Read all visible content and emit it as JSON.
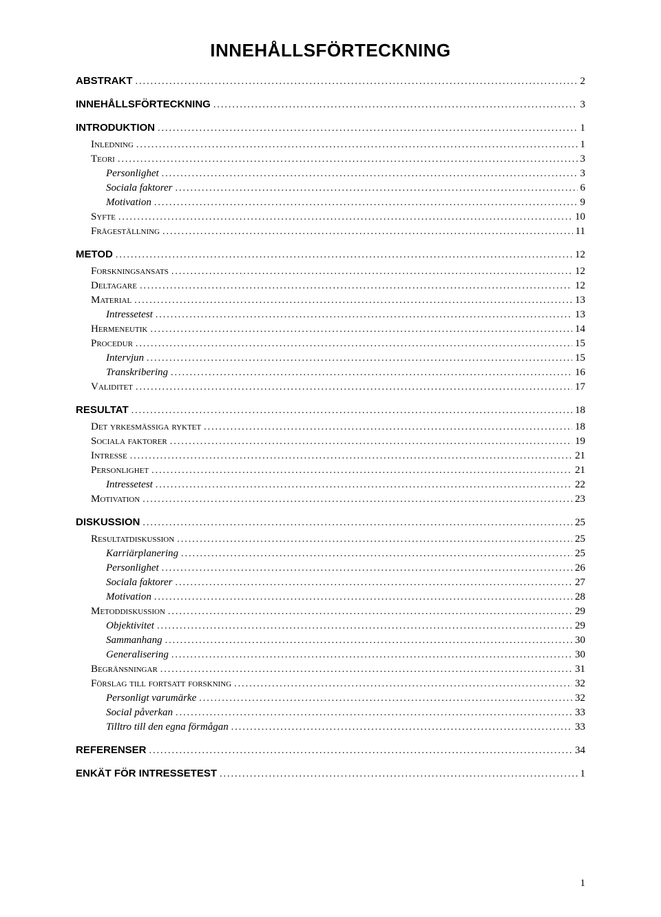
{
  "title": "INNEHÅLLSFÖRTECKNING",
  "footer_page": "1",
  "entries": [
    {
      "level": 0,
      "label": "ABSTRAKT",
      "page": "2"
    },
    {
      "level": 0,
      "label": "INNEHÅLLSFÖRTECKNING",
      "page": "3"
    },
    {
      "level": 0,
      "label": "INTRODUKTION",
      "page": "1"
    },
    {
      "level": 1,
      "label": "Inledning",
      "page": "1"
    },
    {
      "level": 1,
      "label": "Teori",
      "page": "3"
    },
    {
      "level": 2,
      "label": "Personlighet",
      "page": "3"
    },
    {
      "level": 2,
      "label": "Sociala faktorer",
      "page": "6"
    },
    {
      "level": 2,
      "label": "Motivation",
      "page": "9"
    },
    {
      "level": 1,
      "label": "Syfte",
      "page": "10"
    },
    {
      "level": 1,
      "label": "Frågeställning",
      "page": "11"
    },
    {
      "level": 0,
      "label": "METOD",
      "page": "12"
    },
    {
      "level": 1,
      "label": "Forskningsansats",
      "page": "12"
    },
    {
      "level": 1,
      "label": "Deltagare",
      "page": "12"
    },
    {
      "level": 1,
      "label": "Material",
      "page": "13"
    },
    {
      "level": 2,
      "label": "Intressetest",
      "page": "13"
    },
    {
      "level": 1,
      "label": "Hermeneutik",
      "page": "14"
    },
    {
      "level": 1,
      "label": "Procedur",
      "page": "15"
    },
    {
      "level": 2,
      "label": "Intervjun",
      "page": "15"
    },
    {
      "level": 2,
      "label": "Transkribering",
      "page": "16"
    },
    {
      "level": 1,
      "label": "Validitet",
      "page": "17"
    },
    {
      "level": 0,
      "label": "RESULTAT",
      "page": "18"
    },
    {
      "level": 1,
      "label": "Det yrkesmässiga ryktet",
      "page": "18"
    },
    {
      "level": 1,
      "label": "Sociala faktorer",
      "page": "19"
    },
    {
      "level": 1,
      "label": "Intresse",
      "page": "21"
    },
    {
      "level": 1,
      "label": "Personlighet",
      "page": "21"
    },
    {
      "level": 2,
      "label": "Intressetest",
      "page": "22"
    },
    {
      "level": 1,
      "label": "Motivation",
      "page": "23"
    },
    {
      "level": 0,
      "label": "DISKUSSION",
      "page": "25"
    },
    {
      "level": 1,
      "label": "Resultatdiskussion",
      "page": "25"
    },
    {
      "level": 2,
      "label": "Karriärplanering",
      "page": "25"
    },
    {
      "level": 2,
      "label": "Personlighet",
      "page": "26"
    },
    {
      "level": 2,
      "label": "Sociala faktorer",
      "page": "27"
    },
    {
      "level": 2,
      "label": "Motivation",
      "page": "28"
    },
    {
      "level": 1,
      "label": "Metoddiskussion",
      "page": "29"
    },
    {
      "level": 2,
      "label": "Objektivitet",
      "page": "29"
    },
    {
      "level": 2,
      "label": "Sammanhang",
      "page": "30"
    },
    {
      "level": 2,
      "label": "Generalisering",
      "page": "30"
    },
    {
      "level": 1,
      "label": "Begränsningar",
      "page": "31"
    },
    {
      "level": 1,
      "label": "Förslag till fortsatt forskning",
      "page": "32"
    },
    {
      "level": 2,
      "label": "Personligt varumärke",
      "page": "32"
    },
    {
      "level": 2,
      "label": "Social påverkan",
      "page": "33"
    },
    {
      "level": 2,
      "label": "Tilltro till den egna förmågan",
      "page": "33"
    },
    {
      "level": 0,
      "label": "REFERENSER",
      "page": "34"
    },
    {
      "level": 0,
      "label": "ENKÄT FÖR INTRESSETEST",
      "page": "1"
    }
  ]
}
